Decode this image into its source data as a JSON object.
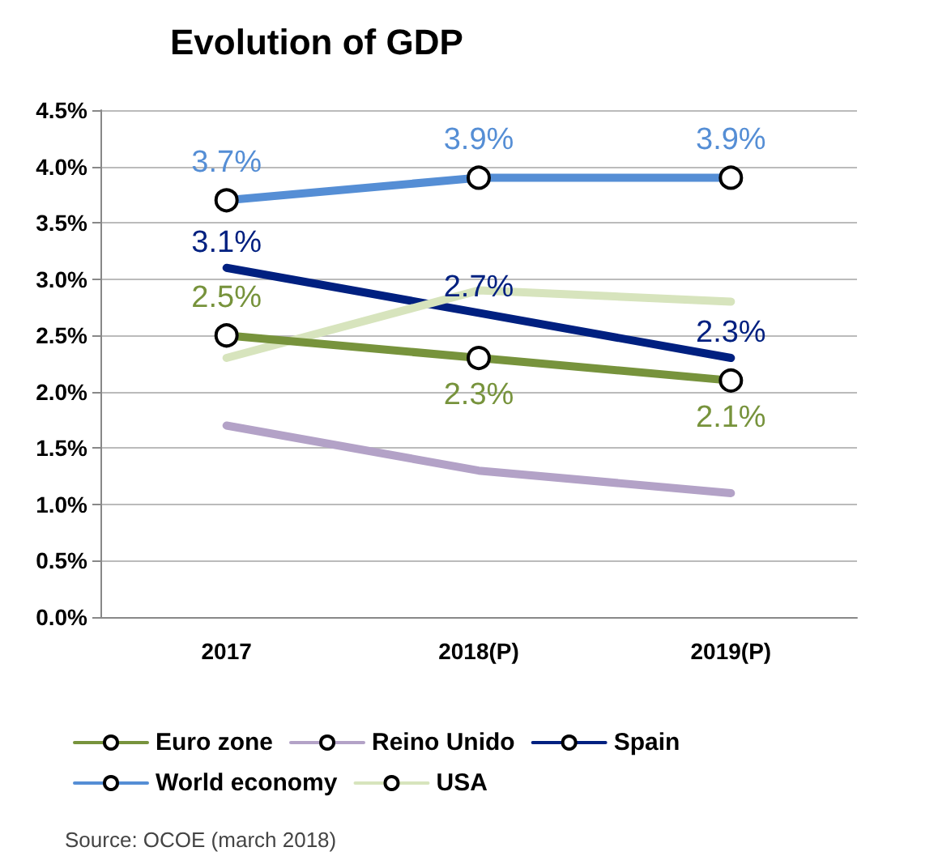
{
  "chart_data": {
    "type": "line",
    "title": "Evolution of GDP",
    "categories": [
      "2017",
      "2018(P)",
      "2019(P)"
    ],
    "series": [
      {
        "name": "Euro zone",
        "color": "#77933c",
        "marker": "circle",
        "values": [
          2.5,
          2.3,
          2.1
        ],
        "value_labels": [
          "2.5%",
          "2.3%",
          "2.1%"
        ]
      },
      {
        "name": "Reino Unido",
        "color": "#b3a2c7",
        "marker": "none",
        "values": [
          1.7,
          1.3,
          1.1
        ]
      },
      {
        "name": "Spain",
        "color": "#002080",
        "marker": "none",
        "values": [
          3.1,
          2.7,
          2.3
        ],
        "value_labels": [
          "3.1%",
          "2.7%",
          "2.3%"
        ]
      },
      {
        "name": "World economy",
        "color": "#558ed5",
        "marker": "circle",
        "values": [
          3.7,
          3.9,
          3.9
        ],
        "value_labels": [
          "3.7%",
          "3.9%",
          "3.9%"
        ]
      },
      {
        "name": "USA",
        "color": "#d7e4bd",
        "marker": "none",
        "values": [
          2.3,
          2.9,
          2.8
        ]
      }
    ],
    "ylim": [
      0,
      4.5
    ],
    "yticks": [
      {
        "value": 0,
        "label": "0.0%"
      },
      {
        "value": 0.5,
        "label": "0.5%"
      },
      {
        "value": 1,
        "label": "1.0%"
      },
      {
        "value": 1.5,
        "label": "1.5%"
      },
      {
        "value": 2,
        "label": "2.0%"
      },
      {
        "value": 2.5,
        "label": "2.5%"
      },
      {
        "value": 3,
        "label": "3.0%"
      },
      {
        "value": 3.5,
        "label": "3.5%"
      },
      {
        "value": 4,
        "label": "4.0%"
      },
      {
        "value": 4.5,
        "label": "4.5%"
      }
    ],
    "grid": "y",
    "legend": "bottom",
    "line_style": "solid",
    "annotations": [
      "Source: OCOE (march 2018)"
    ]
  }
}
